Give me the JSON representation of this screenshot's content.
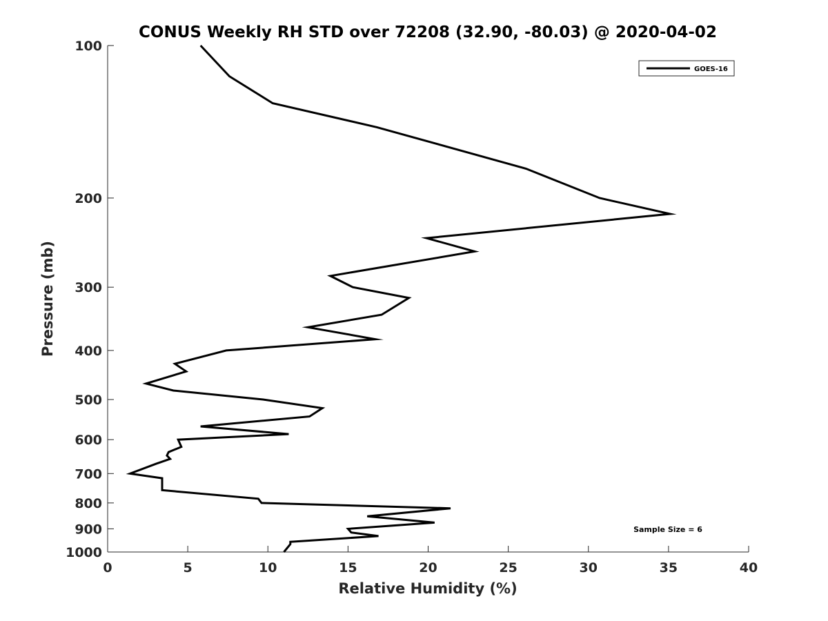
{
  "chart_data": {
    "type": "line",
    "title": "CONUS Weekly RH STD over 72208 (32.90, -80.03) @ 2020-04-02",
    "xlabel": "Relative Humidity (%)",
    "ylabel": "Pressure (mb)",
    "xlim": [
      0,
      40
    ],
    "ylim": [
      100,
      1000
    ],
    "yscale": "log",
    "y_reversed": true,
    "xticks": [
      0,
      5,
      10,
      15,
      20,
      25,
      30,
      35,
      40
    ],
    "xtick_labels": [
      "0",
      "5",
      "10",
      "15",
      "20",
      "25",
      "30",
      "35",
      "40"
    ],
    "yticks": [
      100,
      200,
      300,
      400,
      500,
      600,
      700,
      800,
      900,
      1000
    ],
    "ytick_labels": [
      "100",
      "200",
      "300",
      "400",
      "500",
      "600",
      "700",
      "800",
      "900",
      "1000"
    ],
    "grid": false,
    "legend_position": "top-right",
    "annotation": "Sample Size = 6",
    "series": [
      {
        "name": "GOES-16",
        "color": "#000000",
        "x": [
          5.8,
          7.6,
          10.3,
          16.8,
          26.1,
          30.7,
          35.1,
          19.9,
          22.9,
          13.9,
          15.3,
          18.8,
          17.1,
          12.5,
          16.7,
          7.4,
          4.2,
          4.9,
          2.4,
          4.1,
          9.7,
          13.4,
          12.6,
          5.8,
          11.3,
          4.4,
          4.6,
          3.8,
          3.7,
          3.9,
          3.0,
          1.4,
          3.4,
          3.4,
          9.4,
          9.6,
          21.4,
          16.2,
          20.4,
          15.0,
          15.2,
          16.9,
          11.4,
          11.4,
          11.0
        ],
        "y": [
          100,
          115,
          130,
          145,
          175,
          200,
          215,
          240,
          255,
          285,
          300,
          315,
          340,
          360,
          380,
          400,
          425,
          440,
          465,
          480,
          500,
          520,
          540,
          565,
          585,
          600,
          620,
          635,
          645,
          655,
          670,
          700,
          715,
          755,
          785,
          800,
          820,
          850,
          875,
          900,
          915,
          930,
          955,
          965,
          1000
        ]
      }
    ]
  }
}
